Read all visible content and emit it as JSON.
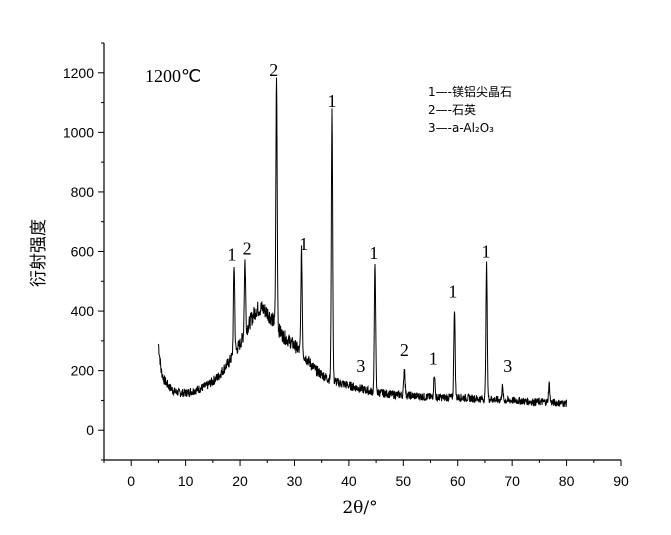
{
  "chart_data": {
    "type": "line",
    "title": "",
    "xlabel": "2θ/°",
    "ylabel": "衍射强度",
    "xlim": [
      -5,
      90
    ],
    "ylim": [
      -100,
      1300
    ],
    "xticks": [
      0,
      10,
      20,
      30,
      40,
      50,
      60,
      70,
      80,
      90
    ],
    "yticks": [
      0,
      200,
      400,
      600,
      800,
      1000,
      1200
    ],
    "grid": false,
    "legend_position": "top-right",
    "temperature_label": "1200℃",
    "legend": [
      {
        "index": "1",
        "text": "1—-镁铝尖晶石"
      },
      {
        "index": "2",
        "text": "2—-石英"
      },
      {
        "index": "3",
        "text": "3—-a-Al₂O₃"
      }
    ],
    "series": [
      {
        "baseline": [
          [
            5,
            290
          ],
          [
            5.5,
            200
          ],
          [
            6,
            170
          ],
          [
            7,
            145
          ],
          [
            8,
            130
          ],
          [
            9,
            125
          ],
          [
            10,
            125
          ],
          [
            12,
            135
          ],
          [
            14,
            150
          ],
          [
            16,
            180
          ],
          [
            18,
            230
          ],
          [
            19,
            260
          ],
          [
            20,
            290
          ],
          [
            21,
            330
          ],
          [
            22,
            370
          ],
          [
            23,
            405
          ],
          [
            24,
            410
          ],
          [
            25,
            395
          ],
          [
            26,
            370
          ],
          [
            27,
            340
          ],
          [
            28,
            315
          ],
          [
            29,
            300
          ],
          [
            30,
            285
          ],
          [
            32,
            245
          ],
          [
            34,
            200
          ],
          [
            36,
            175
          ],
          [
            38,
            160
          ],
          [
            40,
            150
          ],
          [
            42,
            140
          ],
          [
            44,
            130
          ],
          [
            46,
            125
          ],
          [
            48,
            120
          ],
          [
            50,
            118
          ],
          [
            52,
            115
          ],
          [
            54,
            112
          ],
          [
            56,
            110
          ],
          [
            58,
            110
          ],
          [
            60,
            110
          ],
          [
            62,
            108
          ],
          [
            64,
            105
          ],
          [
            66,
            105
          ],
          [
            68,
            100
          ],
          [
            70,
            100
          ],
          [
            72,
            98
          ],
          [
            74,
            95
          ],
          [
            76,
            95
          ],
          [
            78,
            92
          ],
          [
            80,
            90
          ]
        ],
        "peaks": [
          {
            "x": 18.9,
            "y": 555,
            "label": "1"
          },
          {
            "x": 20.9,
            "y": 570,
            "label": "2"
          },
          {
            "x": 26.7,
            "y": 1180,
            "label": "2"
          },
          {
            "x": 31.3,
            "y": 600,
            "label": "1"
          },
          {
            "x": 36.9,
            "y": 1070,
            "label": "1"
          },
          {
            "x": 44.8,
            "y": 560,
            "label": "1"
          },
          {
            "x": 50.2,
            "y": 210,
            "label": "2"
          },
          {
            "x": 55.7,
            "y": 190,
            "label": "1"
          },
          {
            "x": 59.4,
            "y": 410,
            "label": "1"
          },
          {
            "x": 65.3,
            "y": 555,
            "label": "1"
          },
          {
            "x": 68.2,
            "y": 145,
            "label": ""
          },
          {
            "x": 76.8,
            "y": 155,
            "label": ""
          }
        ]
      }
    ],
    "annotations": [
      {
        "text": "1",
        "x": 18.5,
        "y": 570
      },
      {
        "text": "2",
        "x": 21.3,
        "y": 590
      },
      {
        "text": "2",
        "x": 26.2,
        "y": 1190
      },
      {
        "text": "1",
        "x": 31.7,
        "y": 605
      },
      {
        "text": "1",
        "x": 36.9,
        "y": 1085
      },
      {
        "text": "1",
        "x": 44.6,
        "y": 575
      },
      {
        "text": "3",
        "x": 42.2,
        "y": 195
      },
      {
        "text": "2",
        "x": 50.2,
        "y": 250
      },
      {
        "text": "1",
        "x": 55.5,
        "y": 220
      },
      {
        "text": "1",
        "x": 59.1,
        "y": 445
      },
      {
        "text": "1",
        "x": 65.2,
        "y": 580
      },
      {
        "text": "3",
        "x": 69.2,
        "y": 195
      }
    ]
  }
}
